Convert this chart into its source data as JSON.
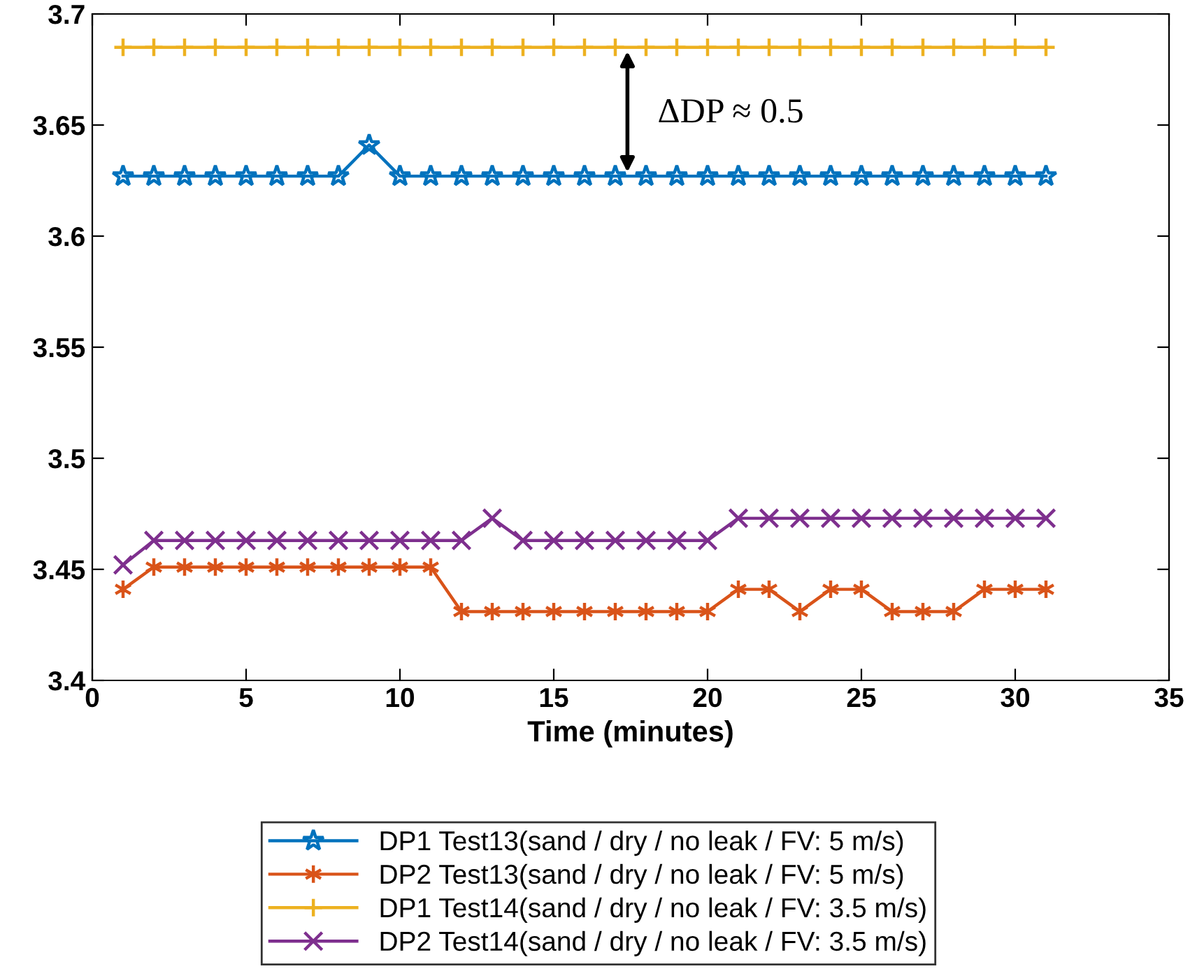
{
  "chart_data": {
    "type": "line",
    "xlabel": "Time (minutes)",
    "x": [
      1,
      2,
      3,
      4,
      5,
      6,
      7,
      8,
      9,
      10,
      11,
      12,
      13,
      14,
      15,
      16,
      17,
      18,
      19,
      20,
      21,
      22,
      23,
      24,
      25,
      26,
      27,
      28,
      29,
      30,
      31
    ],
    "series": [
      {
        "name": "DP1 Test13(sand / dry / no leak / FV: 5 m/s)",
        "color": "#0072bd",
        "marker": "star",
        "values": [
          3.627,
          3.627,
          3.627,
          3.627,
          3.627,
          3.627,
          3.627,
          3.627,
          3.641,
          3.627,
          3.627,
          3.627,
          3.627,
          3.627,
          3.627,
          3.627,
          3.627,
          3.627,
          3.627,
          3.627,
          3.627,
          3.627,
          3.627,
          3.627,
          3.627,
          3.627,
          3.627,
          3.627,
          3.627,
          3.627,
          3.627
        ]
      },
      {
        "name": "DP2 Test13(sand / dry / no leak / FV: 5 m/s)",
        "color": "#d95319",
        "marker": "cross",
        "values": [
          3.441,
          3.451,
          3.451,
          3.451,
          3.451,
          3.451,
          3.451,
          3.451,
          3.451,
          3.451,
          3.451,
          3.431,
          3.431,
          3.431,
          3.431,
          3.431,
          3.431,
          3.431,
          3.431,
          3.431,
          3.441,
          3.441,
          3.431,
          3.441,
          3.441,
          3.431,
          3.431,
          3.431,
          3.441,
          3.441,
          3.441
        ]
      },
      {
        "name": "DP1 Test14(sand / dry / no leak / FV: 3.5 m/s)",
        "color": "#edb120",
        "marker": "cross",
        "values": [
          3.685,
          3.685,
          3.685,
          3.685,
          3.685,
          3.685,
          3.685,
          3.685,
          3.685,
          3.685,
          3.685,
          3.685,
          3.685,
          3.685,
          3.685,
          3.685,
          3.685,
          3.685,
          3.685,
          3.685,
          3.685,
          3.685,
          3.685,
          3.685,
          3.685,
          3.685,
          3.685,
          3.685,
          3.685,
          3.685,
          3.685
        ]
      },
      {
        "name": "DP2 Test14(sand / dry / no leak / FV: 3.5 m/s)",
        "color": "#7e2f8e",
        "marker": "cross",
        "values": [
          3.452,
          3.463,
          3.463,
          3.463,
          3.463,
          3.463,
          3.463,
          3.463,
          3.463,
          3.463,
          3.463,
          3.463,
          3.473,
          3.463,
          3.463,
          3.463,
          3.463,
          3.463,
          3.463,
          3.463,
          3.473,
          3.473,
          3.473,
          3.473,
          3.473,
          3.473,
          3.473,
          3.473,
          3.473,
          3.473,
          3.473
        ]
      }
    ],
    "xlim": [
      0,
      35
    ],
    "xticks": [
      0,
      5,
      10,
      15,
      20,
      25,
      30,
      35
    ],
    "ylim": [
      3.4,
      3.7
    ],
    "yticks": [
      3.4,
      3.45,
      3.5,
      3.55,
      3.6,
      3.65,
      3.7
    ],
    "annotations": [
      "ΔDP ≈ 0.5"
    ],
    "grid": false,
    "legend": "bottom",
    "line_style": "solid"
  }
}
